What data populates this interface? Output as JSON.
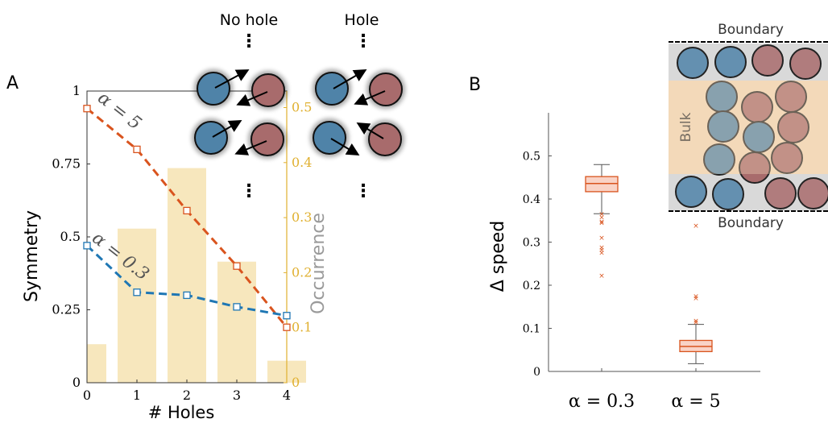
{
  "panelA": {
    "letter": "A",
    "header_no_hole": "No hole",
    "header_hole": "Hole",
    "ellipsis": "⋮"
  },
  "panelB": {
    "letter": "B",
    "inset_top": "Boundary",
    "inset_bottom": "Boundary",
    "inset_bulk": "Bulk"
  },
  "colors": {
    "blue_particle": "#4f83a8",
    "red_particle": "#a86b6c",
    "orange_series": "#d9541e",
    "blue_series": "#1f77b4",
    "bar_fill": "#f7e7bd",
    "occ_axis": "#e0b030",
    "box_face": "#f9d3c6",
    "box_edge": "#d9541e"
  },
  "chart_data": [
    {
      "type": "line",
      "xlabel": "# Holes",
      "ylabel": "Symmetry",
      "y2label": "Occurrence",
      "xlim": [
        0,
        4
      ],
      "ylim": [
        0,
        1
      ],
      "y2lim": [
        0,
        0.53
      ],
      "xticks": [
        "0",
        "1",
        "2",
        "3",
        "4"
      ],
      "yticks": [
        "0",
        "0.25",
        "0.5",
        "0.75",
        "1"
      ],
      "y2ticks": [
        "0",
        "0.1",
        "0.2",
        "0.3",
        "0.4",
        "0.5"
      ],
      "x": [
        0,
        1,
        2,
        3,
        4
      ],
      "series": [
        {
          "name": "α = 5",
          "values": [
            0.94,
            0.8,
            0.59,
            0.4,
            0.19
          ]
        },
        {
          "name": "α = 0.3",
          "values": [
            0.47,
            0.31,
            0.3,
            0.26,
            0.23
          ]
        }
      ],
      "bars": {
        "name": "Occurrence",
        "x": [
          0,
          1,
          2,
          3,
          4
        ],
        "values": [
          0.07,
          0.28,
          0.39,
          0.22,
          0.04
        ]
      }
    },
    {
      "type": "box",
      "ylabel": "Δ speed",
      "ylim": [
        0,
        0.6
      ],
      "yticks": [
        "0",
        "0.1",
        "0.2",
        "0.3",
        "0.4",
        "0.5"
      ],
      "categories": [
        "α = 0.3",
        "α = 5"
      ],
      "boxes": [
        {
          "whisker_low": 0.366,
          "q1": 0.417,
          "median": 0.436,
          "q3": 0.452,
          "whisker_high": 0.48,
          "outliers": [
            0.365,
            0.358,
            0.345,
            0.348,
            0.31,
            0.288,
            0.282,
            0.276,
            0.222
          ]
        },
        {
          "whisker_low": 0.018,
          "q1": 0.046,
          "median": 0.058,
          "q3": 0.072,
          "whisker_high": 0.109,
          "outliers": [
            0.175,
            0.17,
            0.118,
            0.114,
            0.338
          ]
        }
      ]
    }
  ]
}
